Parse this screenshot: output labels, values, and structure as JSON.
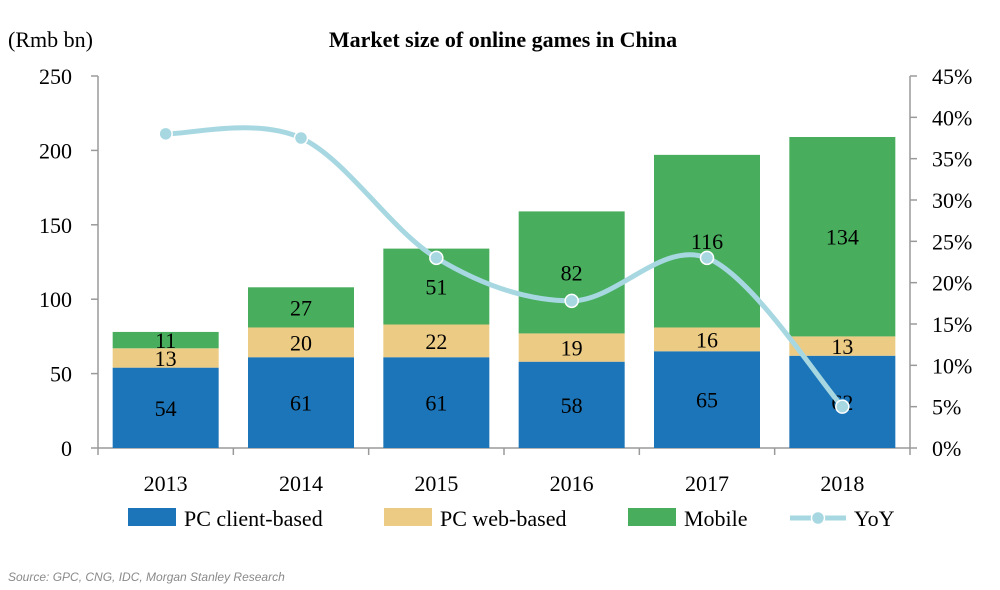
{
  "chart_data": {
    "type": "bar",
    "stacked": true,
    "title": "Market size of online games in China",
    "y_unit_label": "(Rmb bn)",
    "categories": [
      "2013",
      "2014",
      "2015",
      "2016",
      "2017",
      "2018"
    ],
    "series": [
      {
        "name": "PC client-based",
        "color": "#1c75b8",
        "values": [
          54,
          61,
          61,
          58,
          65,
          62
        ]
      },
      {
        "name": "PC web-based",
        "color": "#eccb84",
        "values": [
          13,
          20,
          22,
          19,
          16,
          13
        ]
      },
      {
        "name": "Mobile",
        "color": "#48ad5d",
        "values": [
          11,
          27,
          51,
          82,
          116,
          134
        ]
      }
    ],
    "line_series": {
      "name": "YoY",
      "color": "#a7d8e2",
      "axis": "right",
      "values": [
        38,
        37.5,
        23,
        17.8,
        23,
        5
      ]
    },
    "ylim": [
      0,
      250
    ],
    "yticks": [
      "0",
      "50",
      "100",
      "150",
      "200",
      "250"
    ],
    "y2lim": [
      0,
      45
    ],
    "y2ticks": [
      "0%",
      "5%",
      "10%",
      "15%",
      "20%",
      "25%",
      "30%",
      "35%",
      "40%",
      "45%"
    ],
    "legend_position": "bottom",
    "grid": false
  },
  "source": "Source: GPC, CNG, IDC, Morgan Stanley Research"
}
